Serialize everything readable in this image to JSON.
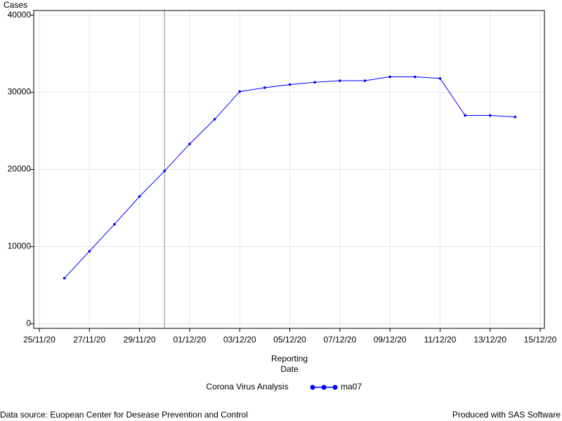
{
  "chart_data": {
    "type": "line",
    "ylabel": "Cases",
    "xlabel": [
      "Reporting",
      "Date"
    ],
    "legend_title": "Corona Virus Analysis",
    "x": [
      "26/11/20",
      "27/11/20",
      "28/11/20",
      "29/11/20",
      "30/11/20",
      "01/12/20",
      "02/12/20",
      "03/12/20",
      "04/12/20",
      "05/12/20",
      "06/12/20",
      "07/12/20",
      "08/12/20",
      "09/12/20",
      "10/12/20",
      "11/12/20",
      "12/12/20",
      "13/12/20",
      "14/12/20"
    ],
    "series": [
      {
        "name": "ma07",
        "color": "#0000ff",
        "values": [
          5900,
          9400,
          12900,
          16500,
          19800,
          23300,
          26500,
          30100,
          30600,
          31000,
          31300,
          31500,
          31500,
          32000,
          32000,
          31800,
          27000,
          27000,
          26800
        ]
      }
    ],
    "xlim": [
      "25/11/20",
      "15/12/20"
    ],
    "xticks": [
      "25/11/20",
      "27/11/20",
      "29/11/20",
      "01/12/20",
      "03/12/20",
      "05/12/20",
      "07/12/20",
      "09/12/20",
      "11/12/20",
      "13/12/20",
      "15/12/20"
    ],
    "ylim": [
      -600,
      40600
    ],
    "yticks": [
      0,
      10000,
      20000,
      30000,
      40000
    ],
    "reference_x": "30/11/20",
    "grid": true,
    "footnote_left": "Data source: Euopean Center for Desease Prevention and Control",
    "footnote_right": "Produced with SAS Software"
  }
}
